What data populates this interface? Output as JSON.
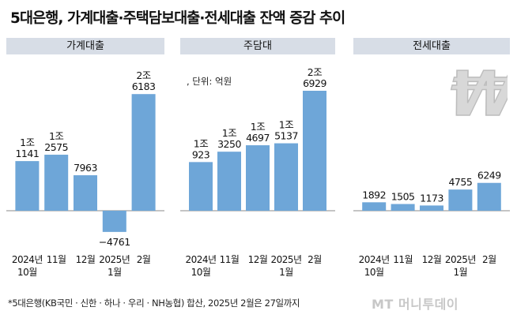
{
  "title": "5대은행, 가계대출·주택담보대출·전세대출 잔액 증감 추이",
  "unit_label": ", 단위: 억원",
  "footnote": "*5대은행(KB국민 · 신한 · 하나 · 우리 · NH농협) 합산, 2025년 2월은 27일까지",
  "logo_text": "MT 머니투데이",
  "colors": {
    "bar": "#6ea6d8",
    "header_bg": "#d7dde6",
    "axis": "#888888"
  },
  "icons": {
    "watermark": "won-icon"
  },
  "chart_data": [
    {
      "type": "bar",
      "title": "가계대출",
      "categories": [
        [
          "2024년",
          "10월"
        ],
        [
          "11월"
        ],
        [
          "12월"
        ],
        [
          "2025년",
          "1월"
        ],
        [
          "2월"
        ]
      ],
      "values": [
        11141,
        12575,
        7963,
        -4761,
        26183
      ],
      "data_labels": [
        [
          "1조",
          "1141"
        ],
        [
          "1조",
          "2575"
        ],
        [
          "7963"
        ],
        [
          "−4761"
        ],
        [
          "2조",
          "6183"
        ]
      ]
    },
    {
      "type": "bar",
      "title": "주담대",
      "categories": [
        [
          "2024년",
          "10월"
        ],
        [
          "11월"
        ],
        [
          "12월"
        ],
        [
          "2025년",
          "1월"
        ],
        [
          "2월"
        ]
      ],
      "values": [
        10923,
        13250,
        14697,
        15137,
        26929
      ],
      "data_labels": [
        [
          "1조",
          "923"
        ],
        [
          "1조",
          "3250"
        ],
        [
          "1조",
          "4697"
        ],
        [
          "1조",
          "5137"
        ],
        [
          "2조",
          "6929"
        ]
      ]
    },
    {
      "type": "bar",
      "title": "전세대출",
      "categories": [
        [
          "2024년",
          "10월"
        ],
        [
          "11월"
        ],
        [
          "12월"
        ],
        [
          "2025년",
          "1월"
        ],
        [
          "2월"
        ]
      ],
      "values": [
        1892,
        1505,
        1173,
        4755,
        6249
      ],
      "data_labels": [
        [
          "1892"
        ],
        [
          "1505"
        ],
        [
          "1173"
        ],
        [
          "4755"
        ],
        [
          "6249"
        ]
      ]
    }
  ]
}
